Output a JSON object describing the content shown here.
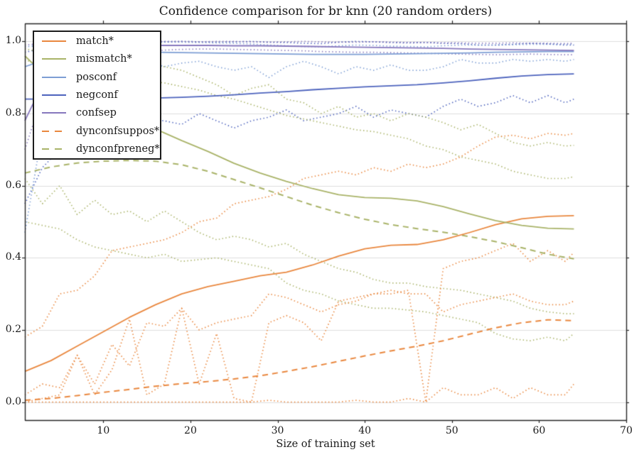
{
  "title": "Confidence comparison for br knn (20 random orders)",
  "colors": {
    "orange": "#e9873e",
    "olive": "#a9b368",
    "lightblue": "#7d9ed4",
    "blue": "#4d63bd",
    "purple": "#8677bd",
    "grid": "#dedede",
    "axis": "#262626",
    "text": "#1a1a1a"
  },
  "axes": {
    "xlabel": "Size of training set",
    "ylabel": "",
    "xlim": [
      1,
      70
    ],
    "ylim": [
      -0.05,
      1.05
    ],
    "xtick_values": [
      10,
      20,
      30,
      40,
      50,
      60,
      70
    ],
    "xtick_labels": [
      "10",
      "20",
      "30",
      "40",
      "50",
      "60",
      "70"
    ],
    "ytick_values": [
      0.0,
      0.2,
      0.4,
      0.6,
      0.8,
      1.0
    ],
    "ytick_labels": [
      "0.0",
      "0.2",
      "0.4",
      "0.6",
      "0.8",
      "1.0"
    ]
  },
  "legend": {
    "items": [
      {
        "label": "match*",
        "color": "#e9873e",
        "style": "solid"
      },
      {
        "label": "mismatch*",
        "color": "#a9b368",
        "style": "solid"
      },
      {
        "label": "posconf",
        "color": "#7d9ed4",
        "style": "solid"
      },
      {
        "label": "negconf",
        "color": "#4d63bd",
        "style": "solid"
      },
      {
        "label": "confsep",
        "color": "#8677bd",
        "style": "solid"
      },
      {
        "label": "dynconfsuppos*",
        "color": "#e9873e",
        "style": "dashed"
      },
      {
        "label": "dynconfpreneg*",
        "color": "#a9b368",
        "style": "dashed"
      }
    ]
  },
  "chart_data": {
    "type": "line",
    "title": "Confidence comparison for br knn (20 random orders)",
    "xlabel": "Size of training set",
    "ylabel": "",
    "xlim": [
      1,
      70
    ],
    "ylim": [
      -0.05,
      1.05
    ],
    "grid": "horizontal",
    "legend_position": "upper left",
    "x_mean": [
      1,
      4,
      7,
      10,
      13,
      16,
      19,
      22,
      25,
      28,
      31,
      34,
      37,
      40,
      43,
      46,
      49,
      52,
      55,
      58,
      61,
      64
    ],
    "x_env": [
      1,
      3,
      5,
      7,
      9,
      11,
      13,
      15,
      17,
      19,
      21,
      23,
      25,
      27,
      29,
      31,
      33,
      35,
      37,
      39,
      41,
      43,
      45,
      47,
      49,
      51,
      53,
      55,
      57,
      59,
      61,
      63,
      64
    ],
    "series": [
      {
        "name": "negconf_max",
        "label": null,
        "color": "#4d63bd",
        "style": "dotted",
        "x_ref": "x_env",
        "y": [
          0.97,
          0.98,
          0.988,
          0.992,
          0.995,
          0.996,
          0.997,
          0.998,
          0.999,
          1.0,
          0.999,
          0.998,
          0.999,
          1.0,
          0.998,
          0.997,
          0.995,
          0.994,
          0.998,
          1.0,
          0.999,
          0.997,
          0.996,
          0.997,
          0.995,
          0.994,
          0.99,
          0.99,
          0.992,
          0.995,
          0.993,
          0.99,
          0.99
        ]
      },
      {
        "name": "negconf_min",
        "label": null,
        "color": "#4d63bd",
        "style": "dotted",
        "x_ref": "x_env",
        "y": [
          0.55,
          0.65,
          0.7,
          0.73,
          0.75,
          0.77,
          0.78,
          0.78,
          0.78,
          0.77,
          0.8,
          0.78,
          0.76,
          0.78,
          0.79,
          0.81,
          0.78,
          0.79,
          0.8,
          0.82,
          0.79,
          0.81,
          0.8,
          0.79,
          0.82,
          0.84,
          0.82,
          0.83,
          0.85,
          0.83,
          0.85,
          0.83,
          0.84
        ]
      },
      {
        "name": "posconf_max",
        "label": null,
        "color": "#7d9ed4",
        "style": "dotted",
        "x_ref": "x_env",
        "y": [
          0.985,
          0.99,
          0.992,
          0.994,
          0.995,
          0.996,
          0.997,
          0.997,
          0.998,
          0.998,
          0.997,
          0.996,
          0.995,
          0.993,
          0.99,
          0.988,
          0.986,
          0.985,
          0.988,
          0.99,
          0.989,
          0.987,
          0.986,
          0.985,
          0.988,
          0.99,
          0.99,
          0.99,
          0.991,
          0.992,
          0.992,
          0.992,
          0.992
        ]
      },
      {
        "name": "posconf_min",
        "label": null,
        "color": "#7d9ed4",
        "style": "dotted",
        "x_ref": "x_env",
        "y": [
          0.47,
          0.75,
          0.86,
          0.9,
          0.92,
          0.925,
          0.93,
          0.945,
          0.93,
          0.94,
          0.945,
          0.93,
          0.92,
          0.93,
          0.9,
          0.93,
          0.945,
          0.93,
          0.91,
          0.93,
          0.92,
          0.935,
          0.92,
          0.92,
          0.93,
          0.95,
          0.94,
          0.94,
          0.95,
          0.945,
          0.95,
          0.945,
          0.95
        ]
      },
      {
        "name": "confsep_max",
        "label": null,
        "color": "#8677bd",
        "style": "dotted",
        "x_ref": "x_env",
        "y": [
          0.99,
          0.995,
          0.998,
          0.999,
          1.0,
          1.0,
          1.0,
          1.0,
          1.0,
          1.0,
          0.999,
          1.0,
          1.0,
          0.999,
          0.998,
          0.999,
          1.0,
          0.999,
          0.998,
          0.998,
          0.999,
          0.998,
          0.997,
          0.997,
          0.996,
          0.996,
          0.995,
          0.995,
          0.996,
          0.995,
          0.995,
          0.994,
          0.995
        ]
      },
      {
        "name": "confsep_min",
        "label": null,
        "color": "#8677bd",
        "style": "dotted",
        "x_ref": "x_env",
        "y": [
          0.7,
          0.85,
          0.91,
          0.94,
          0.955,
          0.965,
          0.97,
          0.973,
          0.976,
          0.978,
          0.979,
          0.979,
          0.978,
          0.977,
          0.976,
          0.975,
          0.974,
          0.972,
          0.971,
          0.97,
          0.97,
          0.969,
          0.968,
          0.967,
          0.966,
          0.965,
          0.964,
          0.963,
          0.964,
          0.965,
          0.964,
          0.963,
          0.963
        ]
      },
      {
        "name": "mismatch_max",
        "label": null,
        "color": "#a9b368",
        "style": "dotted",
        "x_ref": "x_env",
        "y": [
          0.98,
          0.97,
          0.96,
          0.955,
          0.95,
          0.945,
          0.94,
          0.935,
          0.93,
          0.92,
          0.9,
          0.88,
          0.85,
          0.87,
          0.88,
          0.84,
          0.83,
          0.8,
          0.82,
          0.79,
          0.8,
          0.78,
          0.8,
          0.79,
          0.775,
          0.755,
          0.77,
          0.745,
          0.72,
          0.71,
          0.72,
          0.71,
          0.712
        ]
      },
      {
        "name": "mismatch_min",
        "label": null,
        "color": "#a9b368",
        "style": "dotted",
        "x_ref": "x_env",
        "y": [
          0.62,
          0.55,
          0.6,
          0.52,
          0.56,
          0.52,
          0.53,
          0.5,
          0.53,
          0.5,
          0.47,
          0.45,
          0.46,
          0.45,
          0.43,
          0.44,
          0.41,
          0.39,
          0.37,
          0.36,
          0.34,
          0.33,
          0.33,
          0.32,
          0.315,
          0.31,
          0.3,
          0.29,
          0.28,
          0.26,
          0.25,
          0.245,
          0.245
        ]
      },
      {
        "name": "dynconfpreneg_max",
        "label": null,
        "color": "#a9b368",
        "style": "dotted",
        "x_ref": "x_env",
        "y": [
          0.95,
          0.93,
          0.91,
          0.9,
          0.895,
          0.89,
          0.885,
          0.89,
          0.885,
          0.875,
          0.865,
          0.85,
          0.84,
          0.825,
          0.81,
          0.795,
          0.785,
          0.775,
          0.765,
          0.755,
          0.75,
          0.74,
          0.73,
          0.71,
          0.7,
          0.68,
          0.67,
          0.66,
          0.64,
          0.63,
          0.62,
          0.62,
          0.625
        ]
      },
      {
        "name": "dynconfpreneg_min",
        "label": null,
        "color": "#a9b368",
        "style": "dotted",
        "x_ref": "x_env",
        "y": [
          0.5,
          0.49,
          0.48,
          0.45,
          0.43,
          0.42,
          0.41,
          0.4,
          0.41,
          0.39,
          0.395,
          0.4,
          0.39,
          0.38,
          0.37,
          0.33,
          0.31,
          0.3,
          0.28,
          0.27,
          0.26,
          0.26,
          0.255,
          0.25,
          0.24,
          0.23,
          0.22,
          0.19,
          0.175,
          0.17,
          0.18,
          0.17,
          0.19
        ]
      },
      {
        "name": "match_max",
        "label": null,
        "color": "#e9873e",
        "style": "dotted",
        "x_ref": "x_env",
        "y": [
          0.18,
          0.21,
          0.3,
          0.31,
          0.35,
          0.42,
          0.43,
          0.44,
          0.45,
          0.47,
          0.5,
          0.51,
          0.55,
          0.56,
          0.57,
          0.59,
          0.62,
          0.63,
          0.64,
          0.63,
          0.65,
          0.64,
          0.66,
          0.65,
          0.66,
          0.68,
          0.71,
          0.735,
          0.74,
          0.73,
          0.745,
          0.74,
          0.745
        ]
      },
      {
        "name": "match_min",
        "label": null,
        "color": "#e9873e",
        "style": "dotted",
        "x_ref": "x_env",
        "y": [
          0.0,
          0.01,
          0.02,
          0.13,
          0.02,
          0.09,
          0.23,
          0.02,
          0.05,
          0.26,
          0.05,
          0.19,
          0.01,
          0.0,
          0.22,
          0.24,
          0.22,
          0.17,
          0.28,
          0.29,
          0.3,
          0.3,
          0.31,
          0.0,
          0.37,
          0.39,
          0.4,
          0.42,
          0.44,
          0.39,
          0.42,
          0.39,
          0.415
        ]
      },
      {
        "name": "dynconfsuppos_max",
        "label": null,
        "color": "#e9873e",
        "style": "dotted",
        "x_ref": "x_env",
        "y": [
          0.02,
          0.05,
          0.04,
          0.13,
          0.05,
          0.16,
          0.1,
          0.22,
          0.21,
          0.26,
          0.2,
          0.22,
          0.23,
          0.24,
          0.3,
          0.29,
          0.27,
          0.25,
          0.27,
          0.28,
          0.3,
          0.31,
          0.3,
          0.3,
          0.25,
          0.27,
          0.28,
          0.29,
          0.3,
          0.28,
          0.27,
          0.27,
          0.28
        ]
      },
      {
        "name": "dynconfsuppos_min",
        "label": null,
        "color": "#e9873e",
        "style": "dotted",
        "x_ref": "x_env",
        "y": [
          0.0,
          0.0,
          0.0,
          0.0,
          0.0,
          0.0,
          0.0,
          0.0,
          0.0,
          0.0,
          0.0,
          0.0,
          0.0,
          0.0,
          0.005,
          0.0,
          0.0,
          0.0,
          0.0,
          0.005,
          0.0,
          0.0,
          0.01,
          0.0,
          0.04,
          0.02,
          0.02,
          0.04,
          0.01,
          0.04,
          0.02,
          0.02,
          0.05
        ]
      },
      {
        "name": "dynconfsuppos",
        "label": "dynconfsuppos*",
        "color": "#e9873e",
        "style": "dashed",
        "x_ref": "x_mean",
        "y": [
          0.005,
          0.01,
          0.018,
          0.027,
          0.035,
          0.044,
          0.051,
          0.057,
          0.064,
          0.073,
          0.085,
          0.098,
          0.113,
          0.128,
          0.142,
          0.155,
          0.17,
          0.188,
          0.206,
          0.22,
          0.228,
          0.226
        ]
      },
      {
        "name": "dynconfpreneg",
        "label": "dynconfpreneg*",
        "color": "#a9b368",
        "style": "dashed",
        "x_ref": "x_mean",
        "y": [
          0.635,
          0.652,
          0.663,
          0.668,
          0.67,
          0.668,
          0.658,
          0.64,
          0.617,
          0.594,
          0.57,
          0.546,
          0.525,
          0.507,
          0.492,
          0.481,
          0.471,
          0.459,
          0.445,
          0.428,
          0.41,
          0.397
        ]
      },
      {
        "name": "match",
        "label": "match*",
        "color": "#e9873e",
        "style": "solid",
        "x_ref": "x_mean",
        "y": [
          0.085,
          0.115,
          0.155,
          0.195,
          0.235,
          0.27,
          0.3,
          0.32,
          0.335,
          0.35,
          0.36,
          0.38,
          0.405,
          0.425,
          0.435,
          0.437,
          0.45,
          0.47,
          0.492,
          0.508,
          0.515,
          0.517
        ]
      },
      {
        "name": "mismatch",
        "label": "mismatch*",
        "color": "#a9b368",
        "style": "solid",
        "x_ref": "x_mean",
        "y": [
          0.96,
          0.89,
          0.83,
          0.8,
          0.775,
          0.757,
          0.725,
          0.695,
          0.662,
          0.635,
          0.612,
          0.592,
          0.575,
          0.567,
          0.565,
          0.558,
          0.542,
          0.522,
          0.503,
          0.49,
          0.482,
          0.48
        ]
      },
      {
        "name": "posconf",
        "label": "posconf",
        "color": "#7d9ed4",
        "style": "solid",
        "x_ref": "x_mean",
        "y": [
          0.93,
          0.955,
          0.965,
          0.968,
          0.97,
          0.97,
          0.969,
          0.968,
          0.967,
          0.966,
          0.965,
          0.964,
          0.964,
          0.964,
          0.965,
          0.966,
          0.967,
          0.968,
          0.97,
          0.971,
          0.972,
          0.972
        ]
      },
      {
        "name": "negconf",
        "label": "negconf",
        "color": "#4d63bd",
        "style": "solid",
        "x_ref": "x_mean",
        "y": [
          0.84,
          0.84,
          0.84,
          0.841,
          0.842,
          0.843,
          0.845,
          0.848,
          0.852,
          0.857,
          0.861,
          0.866,
          0.87,
          0.874,
          0.877,
          0.88,
          0.885,
          0.891,
          0.898,
          0.904,
          0.908,
          0.91
        ]
      },
      {
        "name": "confsep",
        "label": "confsep",
        "color": "#8677bd",
        "style": "solid",
        "x_ref": "x_mean",
        "y": [
          0.78,
          0.93,
          0.972,
          0.984,
          0.988,
          0.989,
          0.989,
          0.989,
          0.988,
          0.988,
          0.987,
          0.986,
          0.985,
          0.984,
          0.983,
          0.982,
          0.981,
          0.979,
          0.978,
          0.977,
          0.976,
          0.975
        ]
      }
    ]
  }
}
